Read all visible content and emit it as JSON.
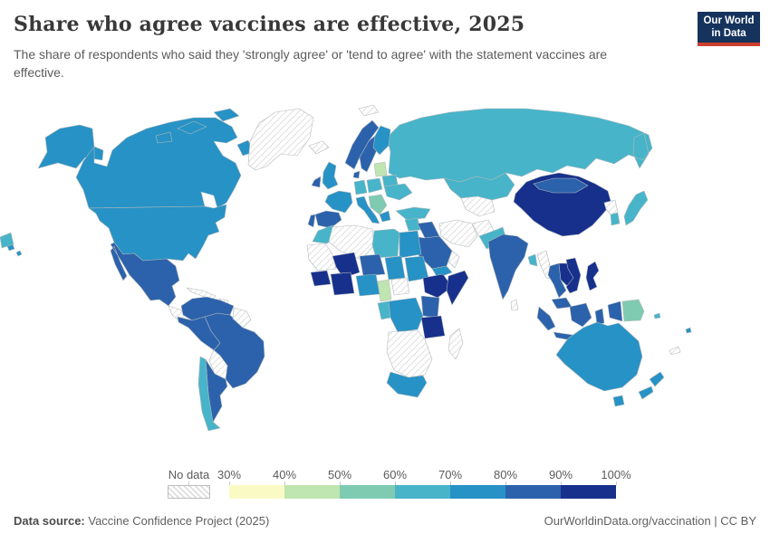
{
  "header": {
    "title": "Share who agree vaccines are effective, 2025",
    "subtitle": "The share of respondents who said they 'strongly agree' or 'tend to agree' with the statement vaccines are effective."
  },
  "logo": {
    "line1": "Our World",
    "line2": "in Data",
    "bg_color": "#15335d",
    "accent_color": "#cc3f2e"
  },
  "legend": {
    "no_data_label": "No data",
    "tick_labels": [
      "30%",
      "40%",
      "50%",
      "60%",
      "70%",
      "80%",
      "90%",
      "100%"
    ]
  },
  "footer": {
    "source_label": "Data source:",
    "source_value": " Vaccine Confidence Project (2025)",
    "right_text": "OurWorldinData.org/vaccination | CC BY"
  },
  "chart_data": {
    "type": "heatmap",
    "subtype": "choropleth-world-map",
    "title": "Share who agree vaccines are effective, 2025",
    "unit": "%",
    "scale_range": [
      30,
      100
    ],
    "legend_position": "bottom",
    "no_data": {
      "label": "No data",
      "pattern": "grey-diagonal-hatch",
      "line_color": "#d8d8d8",
      "border_color": "#c9c9c9"
    },
    "bins": [
      {
        "range": "30-40",
        "color": "#fafbc4"
      },
      {
        "range": "40-50",
        "color": "#bfe5b0"
      },
      {
        "range": "50-60",
        "color": "#7ecbb2"
      },
      {
        "range": "60-70",
        "color": "#47b4c9"
      },
      {
        "range": "70-80",
        "color": "#2792c5"
      },
      {
        "range": "80-90",
        "color": "#2b62ab"
      },
      {
        "range": "90-100",
        "color": "#16308c"
      }
    ],
    "regions": {
      "alaska": "70-80",
      "canada": "70-80",
      "canada-islands-a": "70-80",
      "canada-islands-b": "70-80",
      "canada-islands-c": "70-80",
      "baffin": "70-80",
      "greenland": "no-data",
      "usa": "70-80",
      "hawaii-a": "70-80",
      "hawaii-b": "70-80",
      "mexico": "80-90",
      "central-america": "no-data",
      "panama": "80-90",
      "cuba": "no-data",
      "hispaniola": "no-data",
      "colombia-venezuela": "80-90",
      "guyanas": "no-data",
      "peru-ecuador": "80-90",
      "brazil": "80-90",
      "bolivia": "no-data",
      "chile": "60-70",
      "argentina": "80-90",
      "iceland": "no-data",
      "svalbard": "no-data",
      "norway": "80-90",
      "sweden": "80-90",
      "finland": "70-80",
      "denmark": "80-90",
      "uk": "70-80",
      "ireland": "80-90",
      "france": "70-80",
      "spain": "80-90",
      "portugal": "80-90",
      "germany": "60-70",
      "poland": "60-70",
      "baltics": "40-50",
      "belarus": "60-70",
      "ukraine": "60-70",
      "italy": "70-80",
      "balkans": "50-60",
      "greece": "70-80",
      "russia": "60-70",
      "russia-wrap": "60-70",
      "turkey": "60-70",
      "kazakhstan": "60-70",
      "central-asia": "no-data",
      "levant": "60-70",
      "iraq": "80-90",
      "saudi-arabia": "80-90",
      "yemen": "70-80",
      "oman": "no-data",
      "iran": "no-data",
      "afghanistan": "no-data",
      "pakistan": "60-70",
      "morocco": "60-70",
      "mauritania": "no-data",
      "algeria": "no-data",
      "libya": "60-70",
      "egypt": "70-80",
      "mali": "90-100",
      "niger": "80-90",
      "chad": "70-80",
      "sudan": "70-80",
      "senegal-guinea": "90-100",
      "ivory-ghana-burkina": "90-100",
      "nigeria": "70-80",
      "cameroon": "40-50",
      "central-african-republic": "no-data",
      "ethiopia": "90-100",
      "somalia": "90-100",
      "kenya-uganda": "80-90",
      "drc": "70-80",
      "gabon-congo": "60-70",
      "tanzania": "90-100",
      "southern-africa": "no-data",
      "south-africa": "70-80",
      "madagascar": "no-data",
      "china": "90-100",
      "mongolia": "80-90",
      "india": "80-90",
      "bangladesh": "60-70",
      "myanmar": "no-data",
      "thailand": "80-90",
      "laos-cambodia": "90-100",
      "vietnam": "90-100",
      "malaysia": "80-90",
      "sumatra": "80-90",
      "java": "80-90",
      "borneo": "80-90",
      "sulawesi": "80-90",
      "west-papua": "80-90",
      "papua-new-guinea": "50-60",
      "philippines": "90-100",
      "japan": "60-70",
      "south-korea": "60-70",
      "north-korea": "no-data",
      "sri-lanka": "no-data",
      "australia": "70-80",
      "tasmania": "70-80",
      "new-zealand-north": "70-80",
      "new-zealand-south": "70-80",
      "new-caledonia": "no-data",
      "fiji": "70-80",
      "solomon-islands": "60-70"
    }
  }
}
